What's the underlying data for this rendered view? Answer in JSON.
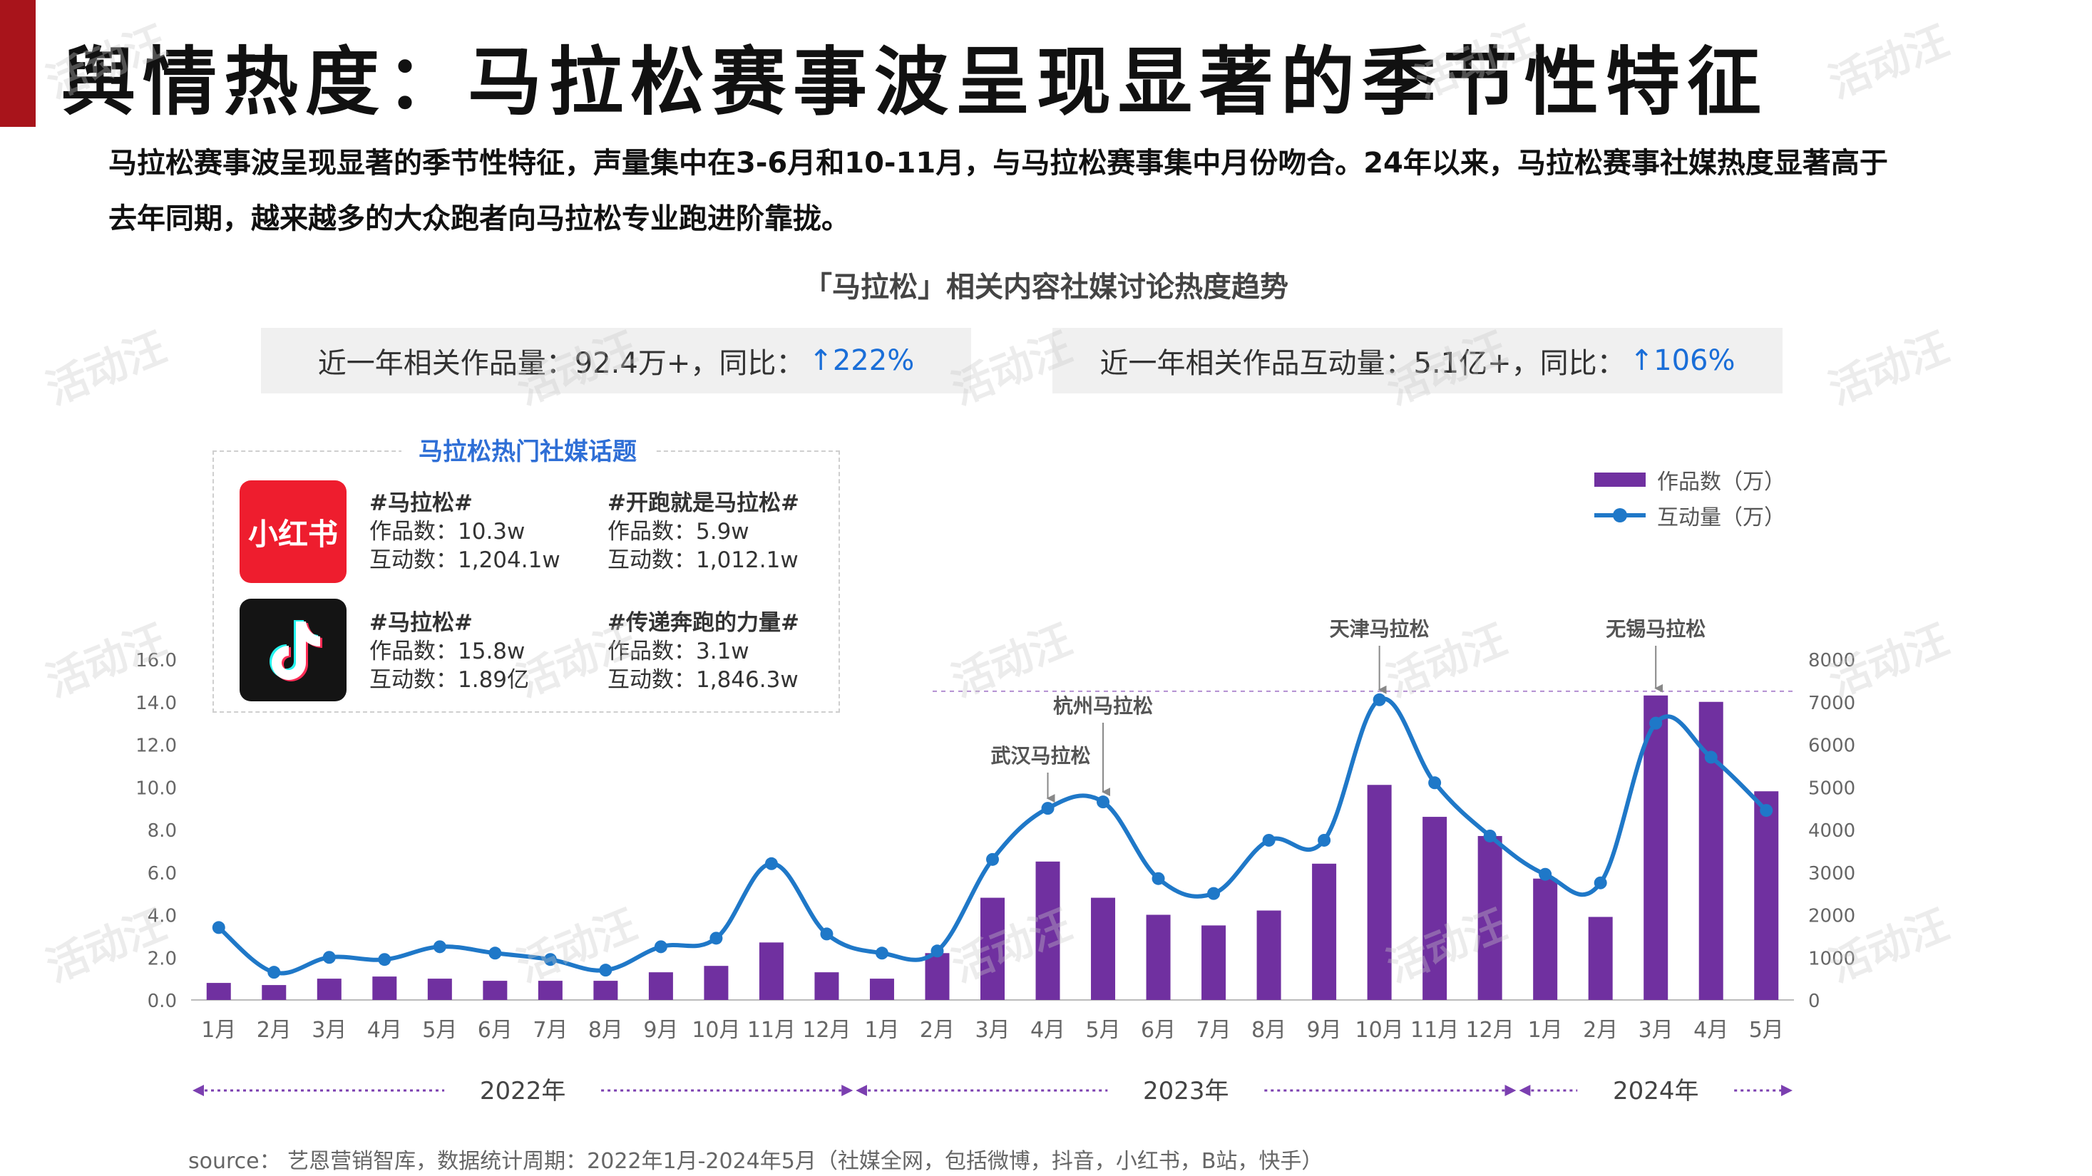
{
  "page": {
    "title": "舆情热度：马拉松赛事波呈现显著的季节性特征",
    "summary": "马拉松赛事波呈现显著的季节性特征，声量集中在3-6月和10-11月，与马拉松赛事集中月份吻合。24年以来，马拉松赛事社媒热度显著高于去年同期，越来越多的大众跑者向马拉松专业跑进阶靠拢。",
    "chart_title": "「马拉松」相关内容社媒讨论热度趋势",
    "source": "source： 艺恩营销智库，数据统计周期：2022年1月-2024年5月（社媒全网，包括微博，抖音，小红书，B站，快手）",
    "watermark": "活动汪"
  },
  "stats": [
    {
      "label": "近一年相关作品量：92.4万+，同比：",
      "change": "↑222%"
    },
    {
      "label": "近一年相关作品互动量：5.1亿+，同比：",
      "change": "↑106%"
    }
  ],
  "topics_panel": {
    "title": "马拉松热门社媒话题",
    "platforms": [
      {
        "logo_text": "小红书",
        "logo_icon": "xiaohongshu-logo",
        "topics": [
          {
            "name": "#马拉松#",
            "works": "作品数：10.3w",
            "interactions": "互动数：1,204.1w"
          },
          {
            "name": "#开跑就是马拉松#",
            "works": "作品数：5.9w",
            "interactions": "互动数：1,012.1w"
          }
        ]
      },
      {
        "logo_text": "",
        "logo_icon": "douyin-logo",
        "topics": [
          {
            "name": "#马拉松#",
            "works": "作品数：15.8w",
            "interactions": "互动数：1.89亿"
          },
          {
            "name": "#传递奔跑的力量#",
            "works": "作品数：3.1w",
            "interactions": "互动数：1,846.3w"
          }
        ]
      }
    ]
  },
  "colors": {
    "bar": "#7030a0",
    "line": "#1f78c8",
    "accent": "#a8141b",
    "up": "#1a6ed8"
  },
  "chart_data": {
    "type": "bar",
    "categories": [
      "1月",
      "2月",
      "3月",
      "4月",
      "5月",
      "6月",
      "7月",
      "8月",
      "9月",
      "10月",
      "11月",
      "12月",
      "1月",
      "2月",
      "3月",
      "4月",
      "5月",
      "6月",
      "7月",
      "8月",
      "9月",
      "10月",
      "11月",
      "12月",
      "1月",
      "2月",
      "3月",
      "4月",
      "5月"
    ],
    "series": [
      {
        "name": "作品数（万）",
        "type": "bar",
        "axis": "left",
        "values": [
          0.8,
          0.7,
          1.0,
          1.1,
          1.0,
          0.9,
          0.9,
          0.9,
          1.3,
          1.6,
          2.7,
          1.3,
          1.0,
          2.2,
          4.8,
          6.5,
          4.8,
          4.0,
          3.5,
          4.2,
          6.4,
          10.1,
          8.6,
          7.7,
          5.7,
          3.9,
          14.3,
          14.0,
          9.8
        ]
      },
      {
        "name": "互动量（万）",
        "type": "line",
        "axis": "right",
        "values": [
          1700,
          650,
          1000,
          950,
          1250,
          1100,
          950,
          700,
          1250,
          1450,
          3200,
          1550,
          1100,
          1150,
          3300,
          4500,
          4650,
          2850,
          2500,
          3750,
          3750,
          7050,
          5100,
          3850,
          2950,
          2750,
          6500,
          5700,
          4450
        ]
      }
    ],
    "years": [
      {
        "label": "2022年",
        "months": 12
      },
      {
        "label": "2023年",
        "months": 12
      },
      {
        "label": "2024年",
        "months": 5
      }
    ],
    "y_left": {
      "min": 0,
      "max": 16,
      "ticks": [
        "0.0",
        "2.0",
        "4.0",
        "6.0",
        "8.0",
        "10.0",
        "12.0",
        "14.0",
        "16.0"
      ]
    },
    "y_right": {
      "min": 0,
      "max": 8000,
      "ticks": [
        "0",
        "1000",
        "2000",
        "3000",
        "4000",
        "5000",
        "6000",
        "7000",
        "8000"
      ]
    },
    "annotations": [
      {
        "label": "武汉马拉松",
        "index": 15
      },
      {
        "label": "杭州马拉松",
        "index": 16
      },
      {
        "label": "天津马拉松",
        "index": 21
      },
      {
        "label": "无锡马拉松",
        "index": 26
      }
    ],
    "reference_line": {
      "value_left": 14.5
    },
    "legend": "top-right",
    "grid": false
  }
}
